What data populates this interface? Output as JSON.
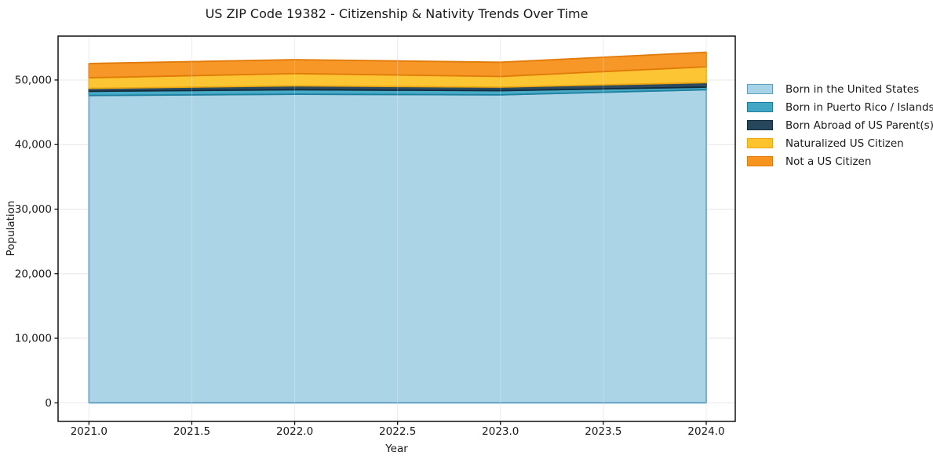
{
  "chart_data": {
    "type": "area",
    "stacked": true,
    "title": "US ZIP Code 19382 - Citizenship & Nativity Trends Over Time",
    "xlabel": "Year",
    "ylabel": "Population",
    "x": [
      2021,
      2022,
      2023,
      2024
    ],
    "series": [
      {
        "key": "born-in-us",
        "name": "Born in the United States",
        "values": [
          47600,
          47800,
          47700,
          48500
        ],
        "fill": "#a8d3e6",
        "edge": "#5f9dc1"
      },
      {
        "key": "born-pr-islands",
        "name": "Born in Puerto Rico / Islands",
        "values": [
          650,
          700,
          650,
          400
        ],
        "fill": "#41a7c5",
        "edge": "#1f7f9e"
      },
      {
        "key": "born-abroad",
        "name": "Born Abroad of US Parent(s)",
        "values": [
          450,
          600,
          550,
          700
        ],
        "fill": "#26465c",
        "edge": "#122c3d"
      },
      {
        "key": "naturalized",
        "name": "Naturalized US Citizen",
        "values": [
          1650,
          1900,
          1650,
          2450
        ],
        "fill": "#fcc32d",
        "edge": "#eda711"
      },
      {
        "key": "not-citizen",
        "name": "Not a US Citizen",
        "values": [
          2200,
          2150,
          2200,
          2250
        ],
        "fill": "#f79420",
        "edge": "#e07b0a"
      }
    ],
    "totals": [
      52550,
      53150,
      52750,
      54300
    ],
    "xticks": {
      "values": [
        2021.0,
        2021.5,
        2022.0,
        2022.5,
        2023.0,
        2023.5,
        2024.0
      ],
      "labels": [
        "2021.0",
        "2021.5",
        "2022.0",
        "2022.5",
        "2023.0",
        "2023.5",
        "2024.0"
      ]
    },
    "yticks": {
      "values": [
        0,
        10000,
        20000,
        30000,
        40000,
        50000
      ],
      "labels": [
        "0",
        "10,000",
        "20,000",
        "30,000",
        "40,000",
        "50,000"
      ]
    },
    "xlim": [
      2020.85,
      2024.141
    ],
    "ylim": [
      -2880,
      56800
    ],
    "grid": true,
    "grid_color": "#e7e7e7",
    "frame_color": "#000000",
    "text_color": "#1a1a1a",
    "legend_position": "right"
  }
}
